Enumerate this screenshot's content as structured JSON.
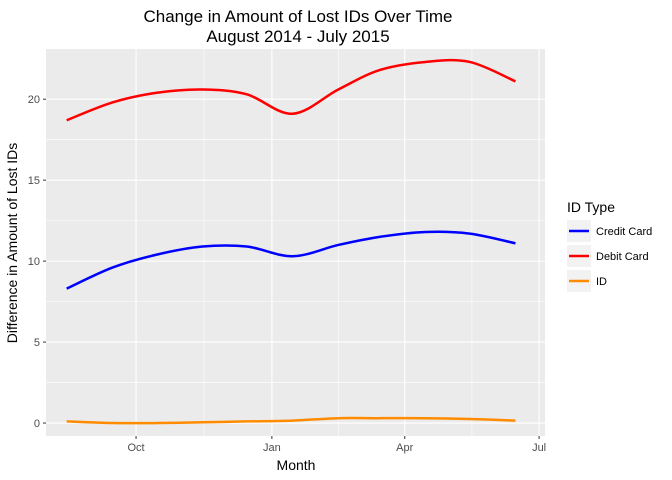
{
  "chart_data": {
    "type": "line",
    "title_line1": "Change in Amount of Lost IDs Over Time",
    "title_line2": "August 2014 - July 2015",
    "xlabel": "Month",
    "ylabel": "Difference in Amount of Lost IDs",
    "x_ticks": [
      "Oct",
      "Jan",
      "Apr",
      "Jul"
    ],
    "x_tick_dates": [
      "2014-10-01",
      "2015-01-01",
      "2015-04-01",
      "2015-07-01"
    ],
    "x": [
      "2014-08-15",
      "2014-09-15",
      "2014-10-15",
      "2014-11-15",
      "2014-12-15",
      "2015-01-15",
      "2015-02-15",
      "2015-03-15",
      "2015-04-15",
      "2015-05-15",
      "2015-06-15"
    ],
    "xlim": [
      "2014-08-01",
      "2015-07-05"
    ],
    "ylim": [
      -0.8,
      23.1
    ],
    "y_ticks": [
      0,
      5,
      10,
      15,
      20
    ],
    "grid": true,
    "legend_position": "right",
    "legend_title": "ID Type",
    "series": [
      {
        "name": "Credit Card",
        "color": "#0000ff",
        "values": [
          8.3,
          9.6,
          10.4,
          10.9,
          10.9,
          10.3,
          11.0,
          11.5,
          11.8,
          11.7,
          11.1
        ]
      },
      {
        "name": "Debit Card",
        "color": "#ff0000",
        "values": [
          18.7,
          19.8,
          20.4,
          20.6,
          20.3,
          19.1,
          20.6,
          21.8,
          22.3,
          22.3,
          21.1
        ]
      },
      {
        "name": "ID",
        "color": "#ff8c00",
        "values": [
          0.1,
          0.0,
          0.0,
          0.05,
          0.1,
          0.15,
          0.3,
          0.3,
          0.3,
          0.25,
          0.15
        ]
      }
    ]
  }
}
